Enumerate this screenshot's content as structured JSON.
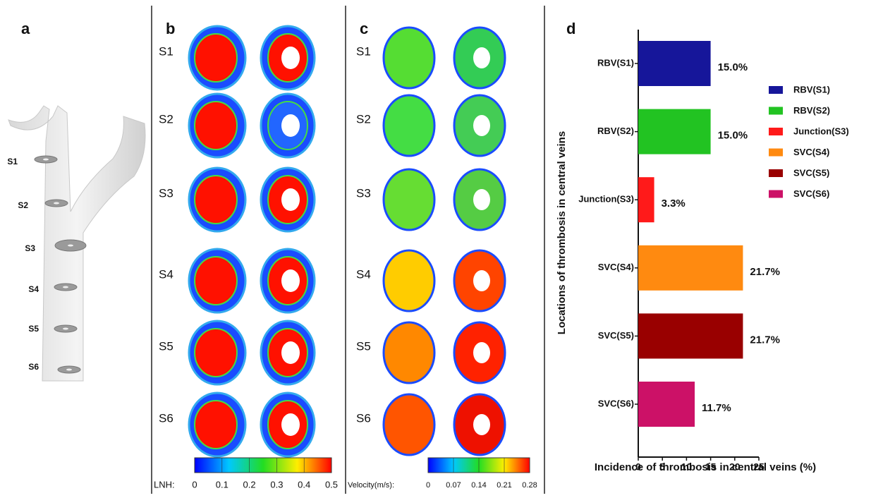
{
  "panel_a": {
    "label": "a",
    "sections": [
      "S1",
      "S2",
      "S3",
      "S4",
      "S5",
      "S6"
    ]
  },
  "panel_b": {
    "label": "b",
    "sections": [
      "S1",
      "S2",
      "S3",
      "S4",
      "S5",
      "S6"
    ],
    "colorbar": {
      "label": "LNH:",
      "lim": [
        0,
        0.5
      ],
      "ticks": [
        0,
        0.1,
        0.2,
        0.3,
        0.4,
        0.5
      ]
    }
  },
  "panel_c": {
    "label": "c",
    "sections": [
      "S1",
      "S2",
      "S3",
      "S4",
      "S5",
      "S6"
    ],
    "colorbar": {
      "label": "Velocity(m/s):",
      "lim": [
        0,
        0.28
      ],
      "ticks": [
        0,
        0.07,
        0.14,
        0.21,
        0.28
      ]
    }
  },
  "chart_data": {
    "type": "hbar",
    "panel_label": "d",
    "xlabel": "Incidence of  thrombosis in central veins  (%)",
    "ylabel": "Locations of thrombosis in central veins",
    "categories": [
      "RBV(S1)",
      "RBV(S2)",
      "Junction(S3)",
      "SVC(S4)",
      "SVC(S5)",
      "SVC(S6)"
    ],
    "values": [
      15.0,
      15.0,
      3.3,
      21.7,
      21.7,
      11.7
    ],
    "value_labels": [
      "15.0%",
      "15.0%",
      "3.3%",
      "21.7%",
      "21.7%",
      "11.7%"
    ],
    "colors": [
      "#16169a",
      "#22c322",
      "#ff1a1a",
      "#ff8a10",
      "#990000",
      "#cc1167"
    ],
    "xlim": [
      0,
      25
    ],
    "xticks": [
      0,
      5,
      10,
      15,
      20,
      25
    ],
    "legend": "upper-right"
  }
}
